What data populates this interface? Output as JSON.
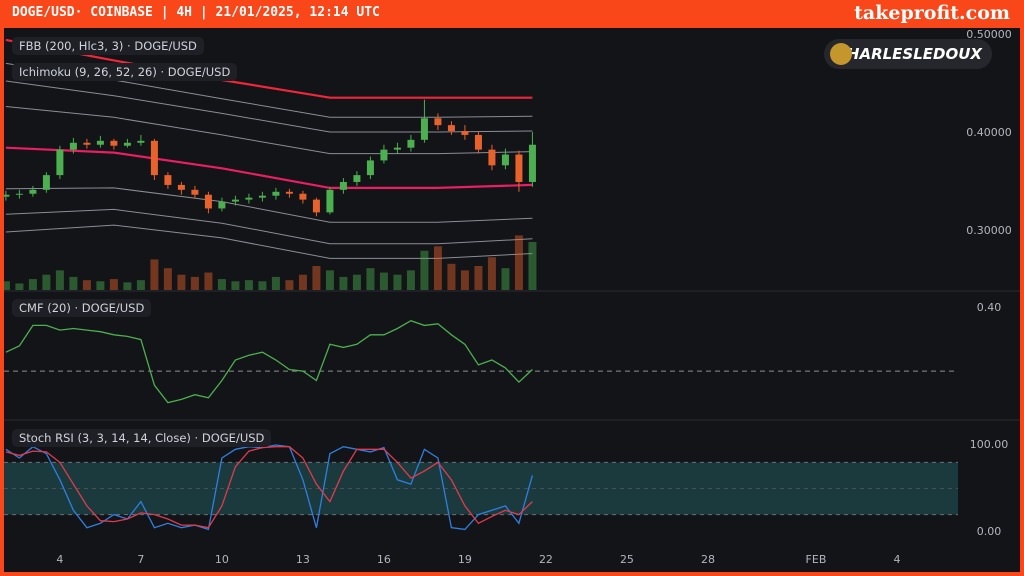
{
  "header": {
    "title": "DOGE/USD· COINBASE | 4H | 21/01/2025, 12:14 UTC",
    "brand": "takeprofit.com"
  },
  "watermark": "CHARLESLEDOUX",
  "chart_data": [
    {
      "type": "candlestick",
      "title": "FBB (200, Hlc3, 3) · DOGE/USD",
      "subtitle": "Ichimoku (9, 26, 52, 26) · DOGE/USD",
      "x": [
        2,
        2.5,
        3,
        3.5,
        4,
        4.5,
        5,
        5.5,
        6,
        6.5,
        7,
        7.5,
        8,
        8.5,
        9,
        9.5,
        10,
        10.5,
        11,
        11.5,
        12,
        12.5,
        13,
        13.5,
        14,
        14.5,
        15,
        15.5,
        16,
        16.5,
        17,
        17.5,
        18,
        18.5,
        19,
        19.5,
        20,
        20.5,
        21,
        21.5
      ],
      "open": [
        0.335,
        0.337,
        0.338,
        0.342,
        0.357,
        0.383,
        0.39,
        0.388,
        0.392,
        0.387,
        0.39,
        0.392,
        0.357,
        0.347,
        0.342,
        0.337,
        0.323,
        0.33,
        0.332,
        0.334,
        0.336,
        0.34,
        0.338,
        0.332,
        0.319,
        0.342,
        0.35,
        0.357,
        0.372,
        0.383,
        0.385,
        0.393,
        0.415,
        0.408,
        0.402,
        0.398,
        0.383,
        0.367,
        0.378,
        0.35
      ],
      "high": [
        0.341,
        0.342,
        0.346,
        0.36,
        0.387,
        0.395,
        0.394,
        0.397,
        0.394,
        0.394,
        0.398,
        0.394,
        0.36,
        0.35,
        0.346,
        0.34,
        0.334,
        0.336,
        0.338,
        0.34,
        0.344,
        0.343,
        0.341,
        0.334,
        0.345,
        0.354,
        0.361,
        0.376,
        0.388,
        0.39,
        0.398,
        0.434,
        0.42,
        0.412,
        0.408,
        0.402,
        0.388,
        0.384,
        0.382,
        0.401
      ],
      "low": [
        0.331,
        0.333,
        0.335,
        0.339,
        0.353,
        0.379,
        0.384,
        0.385,
        0.383,
        0.385,
        0.387,
        0.352,
        0.343,
        0.337,
        0.333,
        0.318,
        0.32,
        0.326,
        0.328,
        0.33,
        0.332,
        0.334,
        0.328,
        0.315,
        0.317,
        0.338,
        0.346,
        0.353,
        0.369,
        0.379,
        0.381,
        0.39,
        0.403,
        0.398,
        0.393,
        0.379,
        0.362,
        0.363,
        0.34,
        0.345
      ],
      "close": [
        0.337,
        0.338,
        0.342,
        0.357,
        0.383,
        0.39,
        0.388,
        0.392,
        0.387,
        0.39,
        0.392,
        0.357,
        0.347,
        0.342,
        0.337,
        0.323,
        0.33,
        0.332,
        0.334,
        0.336,
        0.34,
        0.338,
        0.332,
        0.319,
        0.342,
        0.35,
        0.357,
        0.372,
        0.383,
        0.385,
        0.393,
        0.415,
        0.408,
        0.402,
        0.398,
        0.383,
        0.367,
        0.378,
        0.35,
        0.388
      ],
      "volume": [
        8,
        6,
        10,
        14,
        18,
        12,
        9,
        8,
        10,
        7,
        9,
        28,
        20,
        14,
        12,
        16,
        10,
        8,
        9,
        8,
        12,
        9,
        14,
        22,
        18,
        12,
        14,
        20,
        16,
        14,
        18,
        36,
        40,
        24,
        18,
        22,
        30,
        20,
        50,
        44
      ],
      "vlim": [
        0,
        240
      ],
      "up_color": "#4caf50",
      "down_color": "#e8622c",
      "band_x": [
        2,
        6,
        10,
        14,
        18,
        21.5
      ],
      "bands": [
        {
          "color": "#f0263a",
          "values": [
            0.495,
            0.474,
            0.454,
            0.436,
            0.436,
            0.436
          ]
        },
        {
          "color": "#8a8d96",
          "values": [
            0.471,
            0.454,
            0.435,
            0.416,
            0.416,
            0.417
          ]
        },
        {
          "color": "#8a8d96",
          "values": [
            0.453,
            0.438,
            0.42,
            0.401,
            0.401,
            0.402
          ]
        },
        {
          "color": "#8a8d96",
          "values": [
            0.427,
            0.416,
            0.398,
            0.379,
            0.379,
            0.381
          ]
        },
        {
          "color": "#e91e63",
          "values": [
            0.385,
            0.38,
            0.364,
            0.344,
            0.344,
            0.347
          ]
        },
        {
          "color": "#8a8d96",
          "values": [
            0.343,
            0.344,
            0.33,
            0.309,
            0.309,
            0.313
          ]
        },
        {
          "color": "#8a8d96",
          "values": [
            0.317,
            0.322,
            0.308,
            0.287,
            0.287,
            0.292
          ]
        },
        {
          "color": "#8a8d96",
          "values": [
            0.299,
            0.306,
            0.293,
            0.272,
            0.272,
            0.277
          ]
        }
      ],
      "xlim": [
        1.93,
        37.26
      ],
      "ylim": [
        0.2398,
        0.5071
      ],
      "yticks": [
        {
          "value": 0.5,
          "label": "0.50000"
        },
        {
          "value": 0.4,
          "label": "0.40000"
        },
        {
          "value": 0.3,
          "label": "0.30000"
        }
      ]
    },
    {
      "type": "line",
      "title": "CMF (20) · DOGE/USD",
      "x": [
        2,
        2.5,
        3,
        3.5,
        4,
        4.5,
        5,
        5.5,
        6,
        6.5,
        7,
        7.5,
        8,
        8.5,
        9,
        9.5,
        10,
        10.5,
        11,
        11.5,
        12,
        12.5,
        13,
        13.5,
        14,
        14.5,
        15,
        15.5,
        16,
        16.5,
        17,
        17.5,
        18,
        18.5,
        19,
        19.5,
        20,
        20.5,
        21,
        21.5
      ],
      "values": [
        0.12,
        0.16,
        0.29,
        0.29,
        0.26,
        0.27,
        0.26,
        0.25,
        0.23,
        0.22,
        0.2,
        -0.09,
        -0.2,
        -0.18,
        -0.15,
        -0.17,
        -0.06,
        0.07,
        0.1,
        0.12,
        0.07,
        0.01,
        0.0,
        -0.06,
        0.17,
        0.15,
        0.17,
        0.23,
        0.23,
        0.27,
        0.32,
        0.29,
        0.3,
        0.23,
        0.17,
        0.04,
        0.07,
        0.02,
        -0.07,
        0.01
      ],
      "color": "#4caf50",
      "hline": 0,
      "xlim": [
        1.93,
        37.26
      ],
      "ylim": [
        -0.298,
        0.502
      ],
      "yticks": [
        {
          "value": 0.4,
          "label": "0.40"
        }
      ]
    },
    {
      "type": "line",
      "title": "Stoch RSI (3, 3, 14, 14, Close) · DOGE/USD",
      "x": [
        2,
        2.5,
        3,
        3.5,
        4,
        4.5,
        5,
        5.5,
        6,
        6.5,
        7,
        7.5,
        8,
        8.5,
        9,
        9.5,
        10,
        10.5,
        11,
        11.5,
        12,
        12.5,
        13,
        13.5,
        14,
        14.5,
        15,
        15.5,
        16,
        16.5,
        17,
        17.5,
        18,
        18.5,
        19,
        19.5,
        20,
        20.5,
        21,
        21.5
      ],
      "series": [
        {
          "color": "#2f7fe0",
          "values": [
            95,
            85,
            98,
            90,
            60,
            25,
            5,
            10,
            20,
            15,
            35,
            5,
            10,
            5,
            8,
            3,
            85,
            95,
            98,
            97,
            100,
            98,
            60,
            5,
            90,
            98,
            95,
            92,
            97,
            60,
            55,
            95,
            85,
            5,
            3,
            20,
            25,
            30,
            10,
            65
          ]
        },
        {
          "color": "#e23a4d",
          "values": [
            92,
            88,
            93,
            92,
            80,
            55,
            30,
            13,
            12,
            15,
            22,
            20,
            15,
            8,
            8,
            5,
            30,
            75,
            93,
            97,
            98,
            98,
            85,
            55,
            35,
            70,
            95,
            95,
            95,
            80,
            62,
            70,
            80,
            60,
            30,
            10,
            18,
            25,
            20,
            35
          ]
        }
      ],
      "bands": [
        20,
        80
      ],
      "midline": 50,
      "band_color": "#1b3a3d",
      "xlim": [
        1.93,
        37.26
      ],
      "ylim": [
        -14.9,
        126.4
      ],
      "yticks": [
        {
          "value": 100,
          "label": "100.00"
        },
        {
          "value": 0,
          "label": "0.00"
        }
      ],
      "xticks": [
        4,
        7,
        10,
        13,
        16,
        19,
        22,
        25,
        28,
        {
          "value": 32,
          "label": "FEB"
        },
        {
          "value": 35,
          "label": "4"
        }
      ]
    }
  ]
}
